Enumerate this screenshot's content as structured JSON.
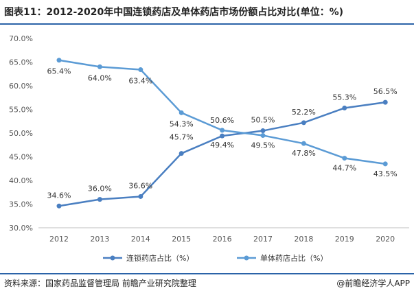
{
  "header": {
    "title": "图表11：2012-2020年中国连锁药店及单体药店市场份额占比对比(单位：%)"
  },
  "footer": {
    "source": "资料来源：国家药品监督管理局 前瞻产业研究院整理",
    "brand": "@前瞻经济学人APP"
  },
  "colors": {
    "rule": "#2b63a8",
    "chain": "#4a7fc1",
    "single": "#5b9bd5"
  },
  "chart_data": {
    "type": "line",
    "title": "图表11：2012-2020年中国连锁药店及单体药店市场份额占比对比(单位：%)",
    "x": [
      "2012",
      "2013",
      "2014",
      "2015",
      "2016",
      "2017",
      "2018",
      "2019",
      "2020"
    ],
    "ylim": [
      30,
      70
    ],
    "yticks": [
      "30.0%",
      "35.0%",
      "40.0%",
      "45.0%",
      "50.0%",
      "55.0%",
      "60.0%",
      "65.0%",
      "70.0%"
    ],
    "grid": false,
    "legend": "bottom",
    "series": [
      {
        "name": "连锁药店占比（%）",
        "values": [
          34.6,
          36.0,
          36.6,
          45.7,
          49.4,
          50.5,
          52.2,
          55.3,
          56.5
        ],
        "labels": [
          "34.6%",
          "36.0%",
          "36.6%",
          "45.7%",
          "49.4%",
          "50.5%",
          "52.2%",
          "55.3%",
          "56.5%"
        ]
      },
      {
        "name": "单体药店占比（%）",
        "values": [
          65.4,
          64.0,
          63.4,
          54.3,
          50.6,
          49.5,
          47.8,
          44.7,
          43.5
        ],
        "labels": [
          "65.4%",
          "64.0%",
          "63.4%",
          "54.3%",
          "50.6%",
          "49.5%",
          "47.8%",
          "44.7%",
          "43.5%"
        ]
      }
    ]
  }
}
